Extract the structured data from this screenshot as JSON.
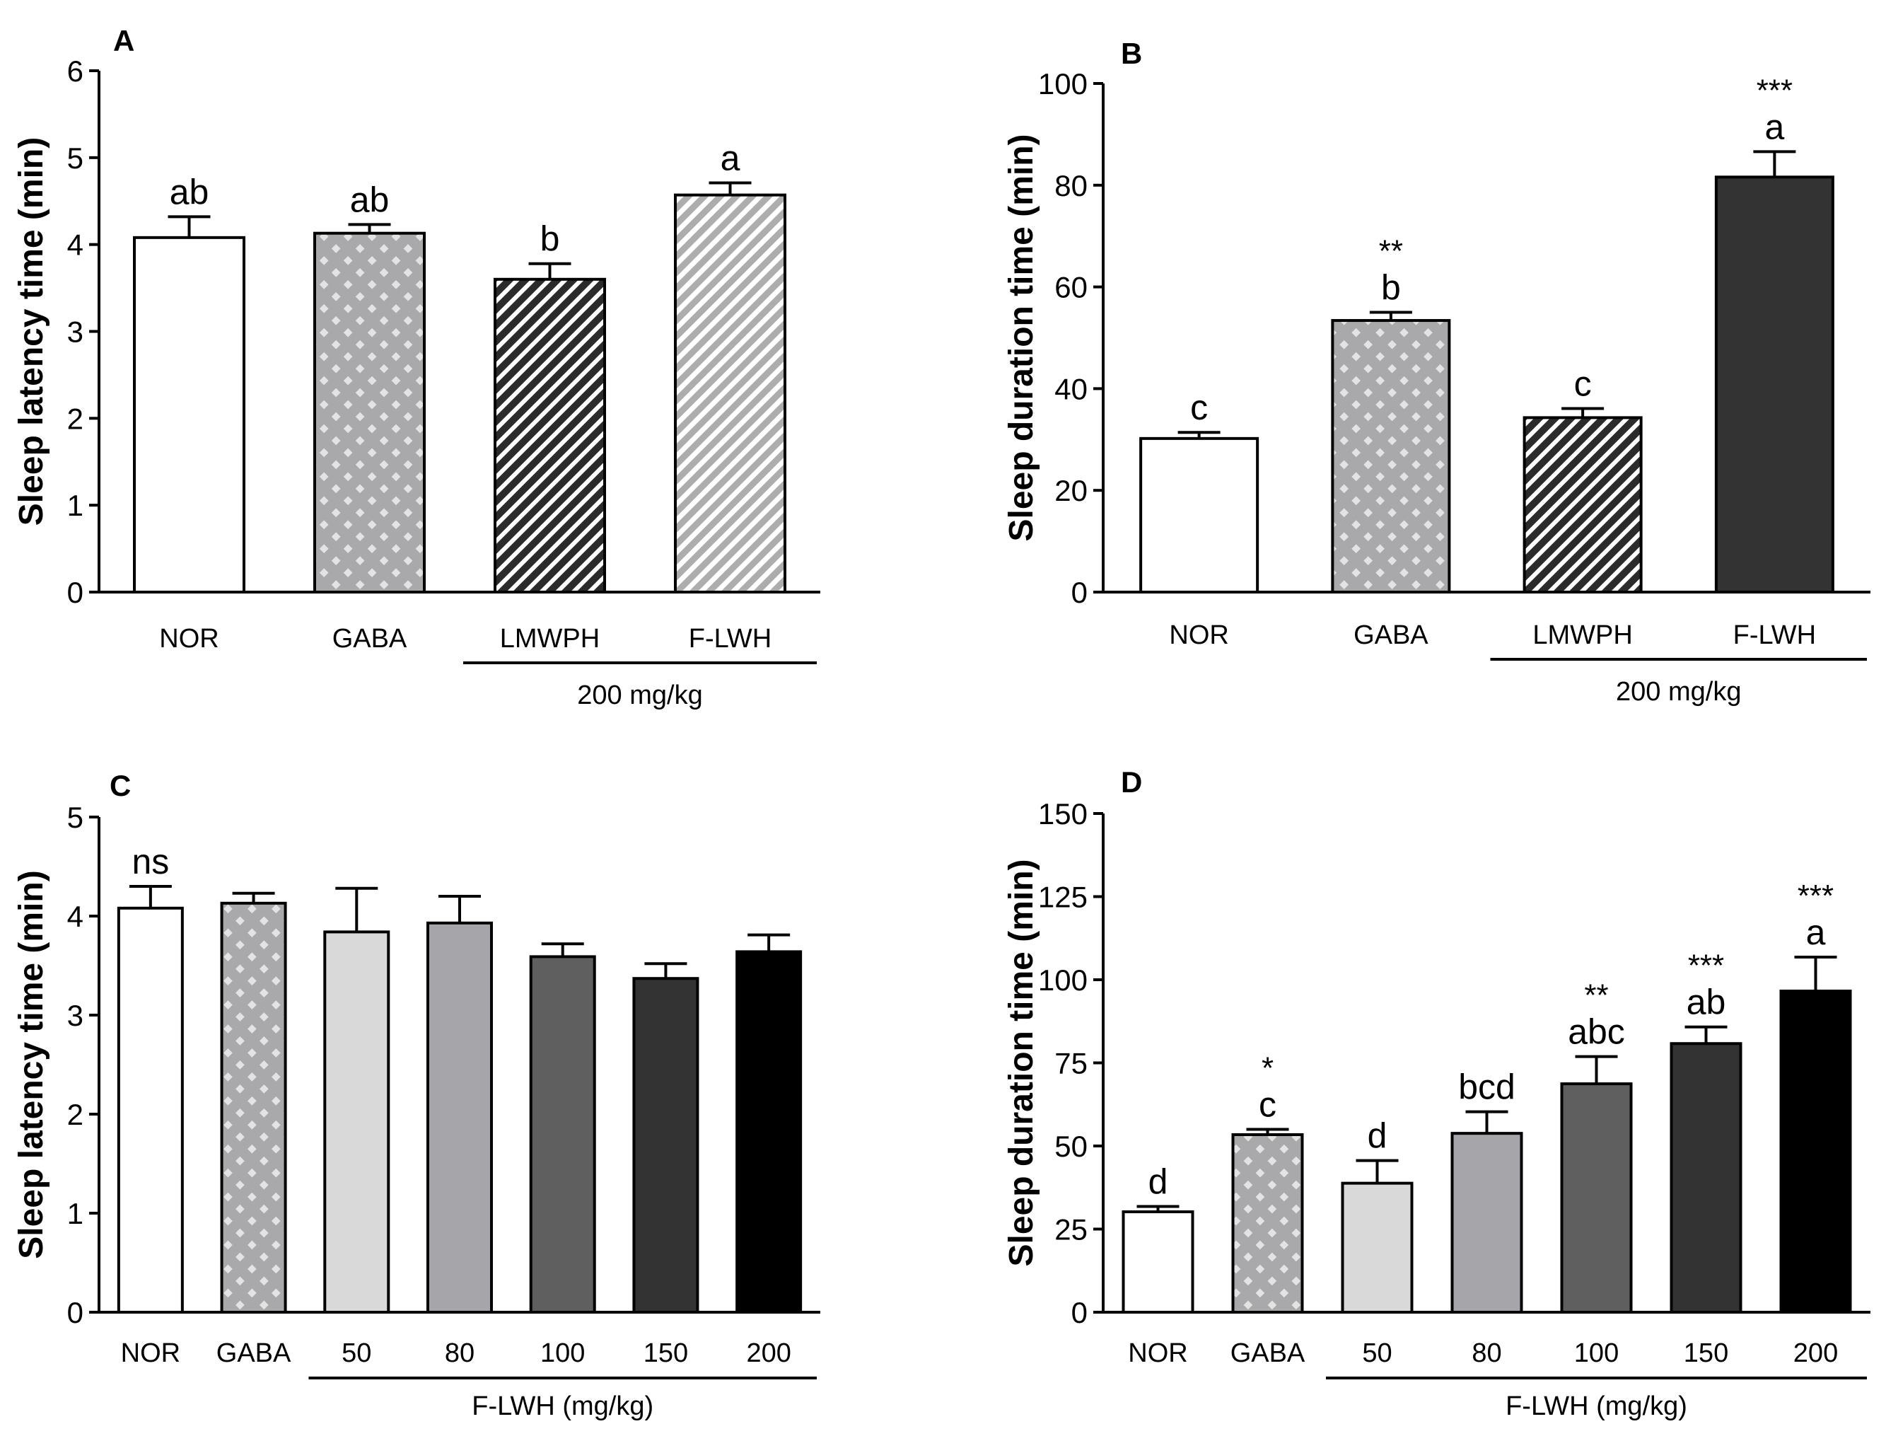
{
  "chart_data": [
    {
      "panel": "A",
      "type": "bar",
      "ylabel": "Sleep latency time (min)",
      "ylim": [
        0,
        6
      ],
      "yticks": [
        0,
        1,
        2,
        3,
        4,
        5,
        6
      ],
      "categories": [
        "NOR",
        "GABA",
        "LMWPH",
        "F-LWH"
      ],
      "values": [
        4.08,
        4.13,
        3.6,
        4.57
      ],
      "errors": [
        0.24,
        0.1,
        0.18,
        0.14
      ],
      "letters": [
        "ab",
        "ab",
        "b",
        "a"
      ],
      "stars": [
        "",
        "",
        "",
        ""
      ],
      "fills": [
        "white",
        "check",
        "darkhatch",
        "lighthatch"
      ],
      "group_label": "200 mg/kg",
      "group_from": 2,
      "group_to": 3
    },
    {
      "panel": "B",
      "type": "bar",
      "ylabel": "Sleep duration time (min)",
      "ylim": [
        0,
        100
      ],
      "yticks": [
        0,
        20,
        40,
        60,
        80,
        100
      ],
      "categories": [
        "NOR",
        "GABA",
        "LMWPH",
        "F-LWH"
      ],
      "values": [
        30.2,
        53.4,
        34.3,
        81.6
      ],
      "errors": [
        1.2,
        1.6,
        1.8,
        5.0
      ],
      "letters": [
        "c",
        "b",
        "c",
        "a"
      ],
      "stars": [
        "",
        "**",
        "",
        "***"
      ],
      "fills": [
        "white",
        "check",
        "darkhatch",
        "#333333"
      ],
      "group_label": "200 mg/kg",
      "group_from": 2,
      "group_to": 3
    },
    {
      "panel": "C",
      "type": "bar",
      "ylabel": "Sleep latency time (min)",
      "ylim": [
        0,
        5
      ],
      "yticks": [
        0,
        1,
        2,
        3,
        4,
        5
      ],
      "categories": [
        "NOR",
        "GABA",
        "50",
        "80",
        "100",
        "150",
        "200"
      ],
      "values": [
        4.08,
        4.13,
        3.84,
        3.93,
        3.59,
        3.37,
        3.64
      ],
      "errors": [
        0.22,
        0.1,
        0.44,
        0.27,
        0.13,
        0.15,
        0.17
      ],
      "letters": [
        "ns",
        "",
        "",
        "",
        "",
        "",
        ""
      ],
      "stars": [
        "",
        "",
        "",
        "",
        "",
        "",
        ""
      ],
      "fills": [
        "white",
        "check",
        "#d9d9d9",
        "#a6a6aa",
        "#5f5f5f",
        "#333333",
        "#000000"
      ],
      "group_label": "F-LWH (mg/kg)",
      "group_from": 2,
      "group_to": 6
    },
    {
      "panel": "D",
      "type": "bar",
      "ylabel": "Sleep duration time (min)",
      "ylim": [
        0,
        150
      ],
      "yticks": [
        0,
        25,
        50,
        75,
        100,
        125,
        150
      ],
      "categories": [
        "NOR",
        "GABA",
        "50",
        "80",
        "100",
        "150",
        "200"
      ],
      "values": [
        30.2,
        53.4,
        38.8,
        53.8,
        68.7,
        80.8,
        96.6
      ],
      "errors": [
        1.6,
        1.6,
        6.8,
        6.5,
        8.2,
        5.0,
        10.2
      ],
      "letters": [
        "d",
        "c",
        "d",
        "bcd",
        "abc",
        "ab",
        "a"
      ],
      "stars": [
        "",
        "*",
        "",
        "",
        "**",
        "***",
        "***"
      ],
      "fills": [
        "white",
        "check",
        "#d9d9d9",
        "#a6a6aa",
        "#5f5f5f",
        "#333333",
        "#000000"
      ],
      "group_label": "F-LWH (mg/kg)",
      "group_from": 2,
      "group_to": 6
    }
  ]
}
